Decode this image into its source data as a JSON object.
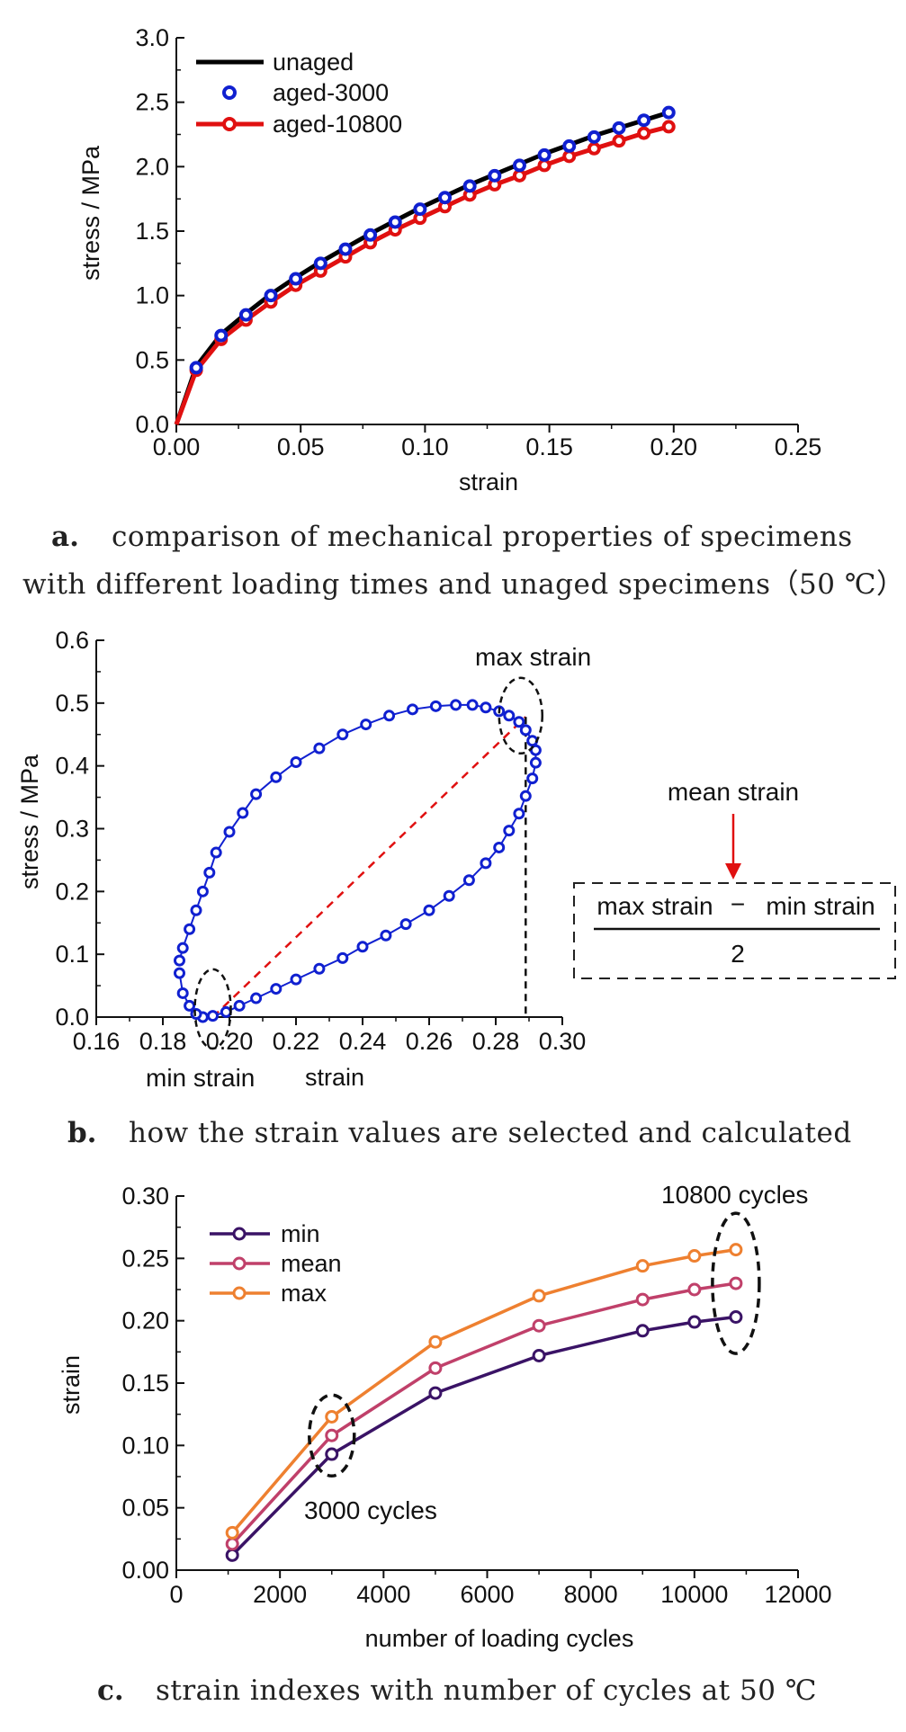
{
  "chart_data": [
    {
      "id": "a",
      "type": "line",
      "caption_letter": "a.",
      "caption_lines": [
        "comparison of mechanical properties of specimens",
        "with different loading times and unaged specimens（50 ℃）"
      ],
      "xlabel": "strain",
      "ylabel": "stress / MPa",
      "xlim": [
        0,
        0.25
      ],
      "ylim": [
        0,
        3.0
      ],
      "xticks": [
        "0.00",
        "0.05",
        "0.10",
        "0.15",
        "0.20",
        "0.25"
      ],
      "yticks": [
        "0.0",
        "0.5",
        "1.0",
        "1.5",
        "2.0",
        "2.5",
        "3.0"
      ],
      "legend_position": "top-left",
      "series": [
        {
          "name": "unaged",
          "color": "#000000",
          "marker": "none",
          "x": [
            0,
            0.008,
            0.018,
            0.028,
            0.038,
            0.048,
            0.058,
            0.068,
            0.078,
            0.088,
            0.098,
            0.108,
            0.118,
            0.128,
            0.138,
            0.148,
            0.158,
            0.168,
            0.178,
            0.188,
            0.198,
            0.2
          ],
          "y": [
            0,
            0.45,
            0.7,
            0.86,
            1.01,
            1.14,
            1.26,
            1.37,
            1.48,
            1.58,
            1.68,
            1.77,
            1.86,
            1.94,
            2.02,
            2.1,
            2.17,
            2.24,
            2.3,
            2.36,
            2.42,
            2.43
          ]
        },
        {
          "name": "aged-3000",
          "color": "#1020d0",
          "marker": "open-circle",
          "x": [
            0.008,
            0.018,
            0.028,
            0.038,
            0.048,
            0.058,
            0.068,
            0.078,
            0.088,
            0.098,
            0.108,
            0.118,
            0.128,
            0.138,
            0.148,
            0.158,
            0.168,
            0.178,
            0.188,
            0.198
          ],
          "y": [
            0.44,
            0.69,
            0.85,
            1.0,
            1.13,
            1.25,
            1.36,
            1.47,
            1.57,
            1.67,
            1.76,
            1.85,
            1.93,
            2.01,
            2.09,
            2.16,
            2.23,
            2.3,
            2.36,
            2.42
          ]
        },
        {
          "name": "aged-10800",
          "color": "#e01010",
          "marker": "open-circle",
          "x": [
            0.008,
            0.018,
            0.028,
            0.038,
            0.048,
            0.058,
            0.068,
            0.078,
            0.088,
            0.098,
            0.108,
            0.118,
            0.128,
            0.138,
            0.148,
            0.158,
            0.168,
            0.178,
            0.188,
            0.198
          ],
          "y": [
            0.42,
            0.66,
            0.81,
            0.95,
            1.08,
            1.19,
            1.3,
            1.41,
            1.51,
            1.6,
            1.69,
            1.78,
            1.86,
            1.93,
            2.01,
            2.08,
            2.14,
            2.2,
            2.26,
            2.31
          ]
        }
      ]
    },
    {
      "id": "b",
      "type": "line",
      "caption_letter": "b.",
      "caption_lines": [
        "how the strain values are selected and calculated"
      ],
      "xlabel": "strain",
      "ylabel": "stress / MPa",
      "xlim": [
        0.16,
        0.3
      ],
      "ylim": [
        0,
        0.6
      ],
      "xticks": [
        "0.16",
        "0.18",
        "0.20",
        "0.22",
        "0.24",
        "0.26",
        "0.28",
        "0.30"
      ],
      "yticks": [
        "0.0",
        "0.1",
        "0.2",
        "0.3",
        "0.4",
        "0.5",
        "0.6"
      ],
      "series": [
        {
          "name": "",
          "color": "#1020d0",
          "marker": "open-circle",
          "x": [
            0.185,
            0.186,
            0.188,
            0.19,
            0.192,
            0.194,
            0.196,
            0.2,
            0.204,
            0.208,
            0.214,
            0.22,
            0.227,
            0.234,
            0.241,
            0.248,
            0.255,
            0.262,
            0.268,
            0.273,
            0.277,
            0.281,
            0.284,
            0.287,
            0.289,
            0.291,
            0.292,
            0.292,
            0.291,
            0.289,
            0.287,
            0.284,
            0.281,
            0.277,
            0.272,
            0.266,
            0.26,
            0.253,
            0.247,
            0.24,
            0.234,
            0.227,
            0.22,
            0.214,
            0.208,
            0.203,
            0.199,
            0.195,
            0.192,
            0.19,
            0.188,
            0.186,
            0.185
          ],
          "y": [
            0.09,
            0.11,
            0.14,
            0.17,
            0.2,
            0.23,
            0.262,
            0.295,
            0.325,
            0.355,
            0.382,
            0.406,
            0.428,
            0.45,
            0.466,
            0.48,
            0.49,
            0.495,
            0.497,
            0.497,
            0.493,
            0.487,
            0.48,
            0.47,
            0.457,
            0.44,
            0.425,
            0.405,
            0.38,
            0.352,
            0.324,
            0.297,
            0.27,
            0.245,
            0.218,
            0.193,
            0.17,
            0.148,
            0.13,
            0.112,
            0.094,
            0.077,
            0.06,
            0.045,
            0.03,
            0.018,
            0.008,
            0.002,
            0.0,
            0.005,
            0.018,
            0.038,
            0.07
          ]
        }
      ],
      "annotations": {
        "max_label": "max strain",
        "min_label": "min strain",
        "mean_label": "mean strain",
        "formula_numerator_left": "max strain",
        "formula_minus": "−",
        "formula_numerator_right": "min strain",
        "formula_denominator": "2",
        "max_strain_x": 0.289,
        "min_strain_x": 0.195
      }
    },
    {
      "id": "c",
      "type": "line",
      "caption_letter": "c.",
      "caption_lines": [
        "strain indexes with number of cycles at 50 ℃"
      ],
      "xlabel": "number of loading cycles",
      "ylabel": "strain",
      "xlim": [
        0,
        12000
      ],
      "ylim": [
        0,
        0.3
      ],
      "xticks": [
        "0",
        "2000",
        "4000",
        "6000",
        "8000",
        "10000",
        "12000"
      ],
      "yticks": [
        "0.00",
        "0.05",
        "0.10",
        "0.15",
        "0.20",
        "0.25",
        "0.30"
      ],
      "legend_position": "top-left",
      "x": [
        1080,
        3000,
        5000,
        7000,
        9000,
        10000,
        10800
      ],
      "series": [
        {
          "name": "min",
          "color": "#3a1366",
          "values": [
            0.012,
            0.093,
            0.142,
            0.172,
            0.192,
            0.199,
            0.203
          ]
        },
        {
          "name": "mean",
          "color": "#c0406a",
          "values": [
            0.021,
            0.108,
            0.162,
            0.196,
            0.217,
            0.225,
            0.23
          ]
        },
        {
          "name": "max",
          "color": "#ee8030",
          "values": [
            0.03,
            0.123,
            0.183,
            0.22,
            0.244,
            0.252,
            0.257
          ]
        }
      ],
      "annotations": {
        "label_3000": "3000 cycles",
        "label_10800": "10800 cycles"
      }
    }
  ]
}
